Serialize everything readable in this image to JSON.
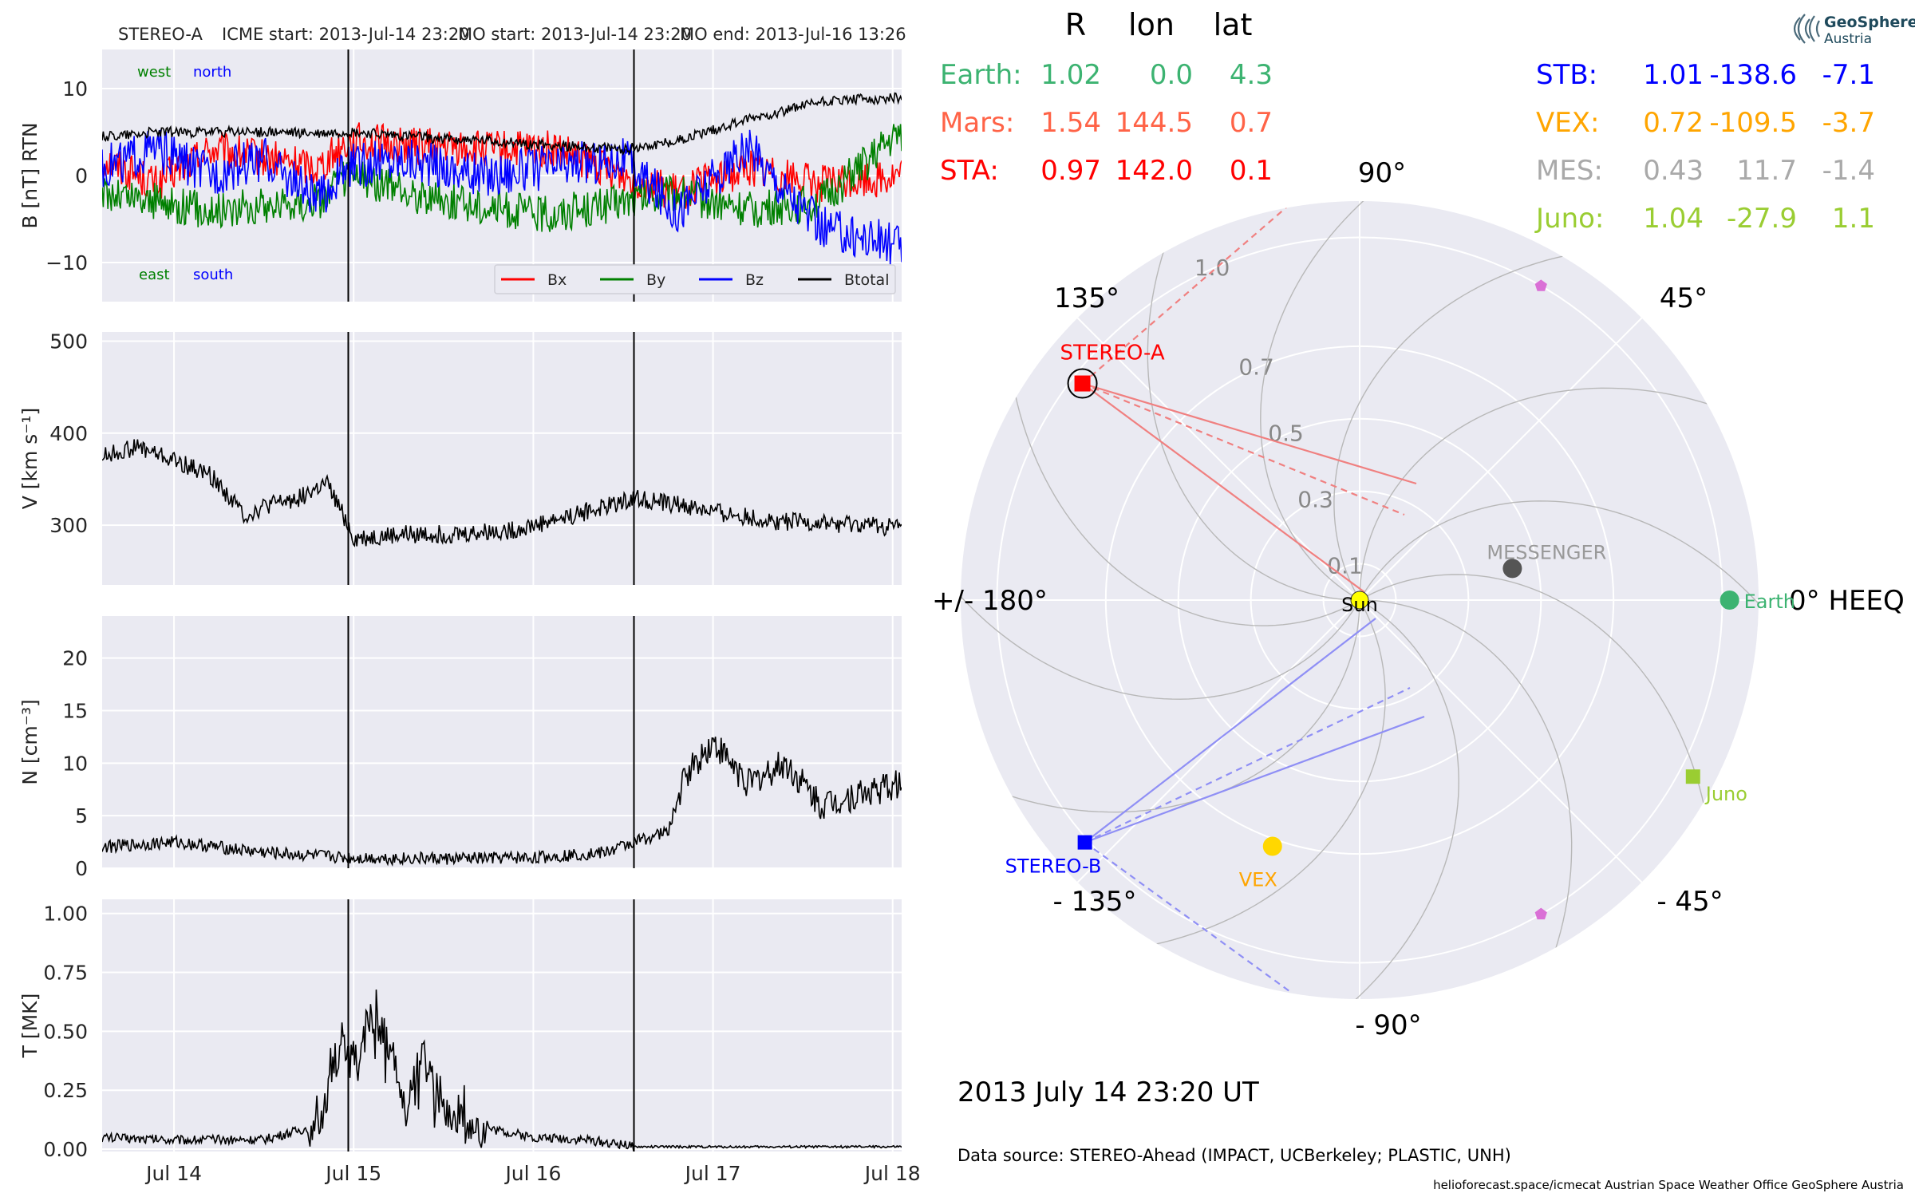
{
  "header": {
    "spacecraft": "STEREO-A",
    "icme_start": "ICME start: 2013-Jul-14 23:20",
    "mo_start": "MO start: 2013-Jul-14 23:20",
    "mo_end": "MO end: 2013-Jul-16 13:26"
  },
  "logo": {
    "line1": "GeoSphere",
    "line2": "Austria"
  },
  "chart_data": [
    {
      "type": "line",
      "panel": "magnetic-field",
      "ylabel": "B [nT] RTN",
      "ylim": [
        -14.5,
        14.5
      ],
      "yticks": [
        -10,
        0,
        10
      ],
      "ytick_labels": [
        "−10",
        "0",
        "10"
      ],
      "x_range_days": [
        13.6,
        18.05
      ],
      "annotations": {
        "west": "west",
        "north": "north",
        "east": "east",
        "south": "south"
      },
      "vlines_days": [
        14.97,
        16.56
      ],
      "legend_placement": "bottom-right",
      "series": [
        {
          "name": "Bx",
          "color": "#ff0000",
          "x_days": [
            13.6,
            13.9,
            14.2,
            14.5,
            14.8,
            14.97,
            15.3,
            15.7,
            16.1,
            16.5,
            16.8,
            17.2,
            17.6,
            18.05
          ],
          "values": [
            2,
            -1,
            3,
            2,
            1,
            4,
            3.5,
            3,
            3,
            0,
            -2,
            1,
            -1,
            0
          ]
        },
        {
          "name": "By",
          "color": "#008000",
          "x_days": [
            13.6,
            13.9,
            14.2,
            14.5,
            14.8,
            14.97,
            15.3,
            15.7,
            16.1,
            16.5,
            16.8,
            17.2,
            17.6,
            18.05
          ],
          "values": [
            -2,
            -3,
            -4,
            -3.5,
            -3,
            0,
            -2,
            -3.5,
            -4.5,
            -3,
            -2,
            -4,
            -3,
            5
          ]
        },
        {
          "name": "Bz",
          "color": "#0000ff",
          "x_days": [
            13.6,
            13.9,
            14.2,
            14.5,
            14.8,
            14.97,
            15.3,
            15.7,
            16.1,
            16.5,
            16.8,
            17.2,
            17.6,
            18.05
          ],
          "values": [
            1,
            3,
            0,
            2,
            -3,
            1,
            2,
            0,
            1,
            2,
            -4,
            3,
            -6,
            -8
          ]
        },
        {
          "name": "Btotal",
          "color": "#000000",
          "x_days": [
            13.6,
            13.9,
            14.2,
            14.5,
            14.8,
            14.97,
            15.3,
            15.7,
            16.1,
            16.5,
            16.8,
            17.2,
            17.6,
            18.05
          ],
          "values": [
            4.5,
            5,
            5,
            5,
            4.8,
            5,
            4.5,
            4,
            3.5,
            3,
            4,
            6.5,
            8.5,
            9
          ]
        }
      ]
    },
    {
      "type": "line",
      "panel": "velocity",
      "ylabel": "V [km s⁻¹]",
      "ylim": [
        235,
        510
      ],
      "yticks": [
        300,
        400,
        500
      ],
      "ytick_labels": [
        "300",
        "400",
        "500"
      ],
      "x_range_days": [
        13.6,
        18.05
      ],
      "vlines_days": [
        14.97,
        16.56
      ],
      "series": [
        {
          "name": "",
          "color": "#000000",
          "x_days": [
            13.6,
            13.8,
            14.0,
            14.2,
            14.4,
            14.5,
            14.7,
            14.85,
            14.97,
            15.0,
            15.3,
            15.6,
            15.9,
            16.2,
            16.4,
            16.56,
            16.8,
            17.0,
            17.3,
            17.6,
            18.05
          ],
          "values": [
            375,
            385,
            370,
            355,
            310,
            320,
            330,
            345,
            300,
            285,
            290,
            290,
            295,
            310,
            320,
            330,
            322,
            315,
            305,
            302,
            298
          ]
        }
      ]
    },
    {
      "type": "line",
      "panel": "density",
      "ylabel": "N [cm⁻³]",
      "ylim": [
        0,
        24
      ],
      "yticks": [
        0,
        5,
        10,
        15,
        20
      ],
      "ytick_labels": [
        "0",
        "5",
        "10",
        "15",
        "20"
      ],
      "x_range_days": [
        13.6,
        18.05
      ],
      "vlines_days": [
        14.97,
        16.56
      ],
      "series": [
        {
          "name": "",
          "color": "#000000",
          "x_days": [
            13.6,
            14.0,
            14.5,
            14.97,
            15.5,
            16.0,
            16.4,
            16.56,
            16.75,
            16.85,
            17.0,
            17.2,
            17.4,
            17.6,
            17.8,
            18.05
          ],
          "values": [
            2,
            2.5,
            1.5,
            1,
            0.9,
            1,
            1.5,
            2.5,
            3.5,
            9,
            12,
            8,
            10,
            6,
            7,
            8
          ]
        }
      ]
    },
    {
      "type": "line",
      "panel": "temperature",
      "ylabel": "T [MK]",
      "ylim": [
        -0.01,
        1.06
      ],
      "yticks": [
        0.0,
        0.25,
        0.5,
        0.75,
        1.0
      ],
      "ytick_labels": [
        "0.00",
        "0.25",
        "0.50",
        "0.75",
        "1.00"
      ],
      "x_range_days": [
        13.6,
        18.05
      ],
      "xticks_days": [
        14,
        15,
        16,
        17,
        18
      ],
      "xtick_labels": [
        "Jul 14",
        "Jul 15",
        "Jul 16",
        "Jul 17",
        "Jul 18"
      ],
      "vlines_days": [
        14.97,
        16.56
      ],
      "series": [
        {
          "name": "",
          "color": "#000000",
          "x_days": [
            13.6,
            14.0,
            14.5,
            14.8,
            14.95,
            15.0,
            15.1,
            15.2,
            15.3,
            15.4,
            15.5,
            15.6,
            15.8,
            16.0,
            16.3,
            16.56,
            17.0,
            17.5,
            18.05
          ],
          "values": [
            0.05,
            0.04,
            0.04,
            0.1,
            0.45,
            0.3,
            0.6,
            0.4,
            0.2,
            0.35,
            0.15,
            0.1,
            0.08,
            0.05,
            0.04,
            0.01,
            0.01,
            0.01,
            0.01
          ]
        }
      ]
    },
    {
      "type": "scatter",
      "panel": "polar-positions",
      "r_ticks": [
        0.1,
        0.3,
        0.5,
        0.7,
        1.0
      ],
      "r_tick_labels": [
        "0.1",
        "0.3",
        "0.5",
        "0.7",
        "1.0"
      ],
      "r_max": 1.1,
      "angle_labels": {
        "a0": "0° HEEQ",
        "a45": "45°",
        "a90": "90°",
        "a135": "135°",
        "a180": "+/- 180°",
        "am135": "- 135°",
        "am90": "- 90°",
        "am45": "- 45°"
      },
      "bodies": [
        {
          "name": "Sun",
          "r": 0.0,
          "lon": 0.0,
          "color": "#ffff00",
          "marker": "circle"
        },
        {
          "name": "Earth",
          "r": 1.02,
          "lon": 0.0,
          "color": "#3cb371",
          "marker": "circle"
        },
        {
          "name": "MESSENGER",
          "r": 0.43,
          "lon": 11.7,
          "color": "#555555",
          "marker": "circle"
        },
        {
          "name": "STEREO-A",
          "r": 0.97,
          "lon": 142.0,
          "color": "#ff0000",
          "marker": "square"
        },
        {
          "name": "STEREO-B",
          "r": 1.01,
          "lon": -138.6,
          "color": "#0000ff",
          "marker": "square"
        },
        {
          "name": "VEX",
          "r": 0.72,
          "lon": -109.5,
          "color": "#ffd700",
          "marker": "circle"
        },
        {
          "name": "Juno",
          "r": 1.04,
          "lon": -27.9,
          "color": "#9acd32",
          "marker": "square"
        },
        {
          "name": "",
          "r": 1.0,
          "lon": 60.0,
          "color": "#da70d6",
          "marker": "pentagon"
        },
        {
          "name": "",
          "r": 1.0,
          "lon": -60.0,
          "color": "#da70d6",
          "marker": "pentagon"
        }
      ]
    }
  ],
  "positions": {
    "headers": [
      "R",
      "lon",
      "lat"
    ],
    "left": [
      {
        "name": "Earth:",
        "r": "1.02",
        "lon": "0.0",
        "lat": "4.3",
        "color": "#3cb371"
      },
      {
        "name": "Mars:",
        "r": "1.54",
        "lon": "144.5",
        "lat": "0.7",
        "color": "#ff6347"
      },
      {
        "name": "STA:",
        "r": "0.97",
        "lon": "142.0",
        "lat": "0.1",
        "color": "#ff0000"
      }
    ],
    "right": [
      {
        "name": "STB:",
        "r": "1.01",
        "lon": "-138.6",
        "lat": "-7.1",
        "color": "#0000ff"
      },
      {
        "name": "VEX:",
        "r": "0.72",
        "lon": "-109.5",
        "lat": "-3.7",
        "color": "#ffa500"
      },
      {
        "name": "MES:",
        "r": "0.43",
        "lon": "11.7",
        "lat": "-1.4",
        "color": "#a9a9a9"
      },
      {
        "name": "Juno:",
        "r": "1.04",
        "lon": "-27.9",
        "lat": "1.1",
        "color": "#9acd32"
      }
    ]
  },
  "footer": {
    "datetime": "2013 July 14  23:20 UT",
    "source": "Data source: STEREO-Ahead (IMPACT, UCBerkeley; PLASTIC, UNH)",
    "credit": "helioforecast.space/icmecat   Austrian Space Weather Office   GeoSphere Austria"
  }
}
